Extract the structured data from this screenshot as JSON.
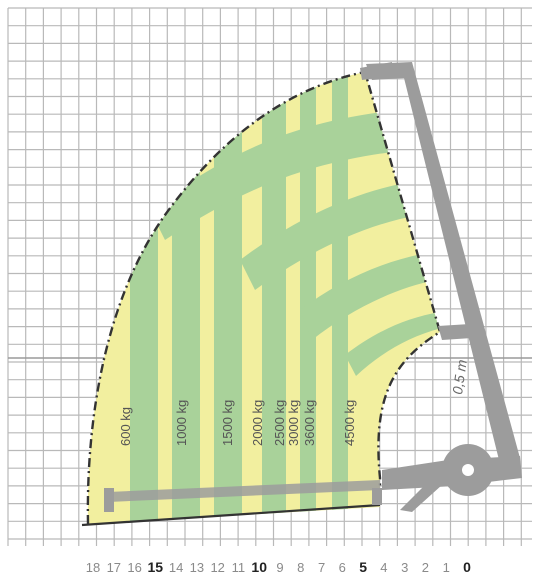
{
  "colors": {
    "background": "#ffffff",
    "grid": "#b9b9b9",
    "zone_yellow": "#f2ef9f",
    "zone_green": "#a9d29a",
    "envelope": "#333333",
    "machine": "#9c9c9c",
    "tick_text": "#8a8a8a",
    "tick_bold": "#222222"
  },
  "load_zones": [
    {
      "label": "600 kg"
    },
    {
      "label": "1000 kg"
    },
    {
      "label": "1500 kg"
    },
    {
      "label": "2000 kg"
    },
    {
      "label": "2500 kg"
    },
    {
      "label": "3000 kg"
    },
    {
      "label": "3600 kg"
    },
    {
      "label": "4500 kg"
    }
  ],
  "x_axis": {
    "ticks": [
      {
        "label": "18",
        "bold": false
      },
      {
        "label": "17",
        "bold": false
      },
      {
        "label": "16",
        "bold": false
      },
      {
        "label": "15",
        "bold": true
      },
      {
        "label": "14",
        "bold": false
      },
      {
        "label": "13",
        "bold": false
      },
      {
        "label": "12",
        "bold": false
      },
      {
        "label": "11",
        "bold": false
      },
      {
        "label": "10",
        "bold": true
      },
      {
        "label": "9",
        "bold": false
      },
      {
        "label": "8",
        "bold": false
      },
      {
        "label": "7",
        "bold": false
      },
      {
        "label": "6",
        "bold": false
      },
      {
        "label": "5",
        "bold": true
      },
      {
        "label": "4",
        "bold": false
      },
      {
        "label": "3",
        "bold": false
      },
      {
        "label": "2",
        "bold": false
      },
      {
        "label": "1",
        "bold": false
      },
      {
        "label": "0",
        "bold": true
      }
    ]
  },
  "annotation": {
    "text": "0,5 m"
  },
  "machine": {
    "icon": "telehandler-silhouette-icon"
  }
}
